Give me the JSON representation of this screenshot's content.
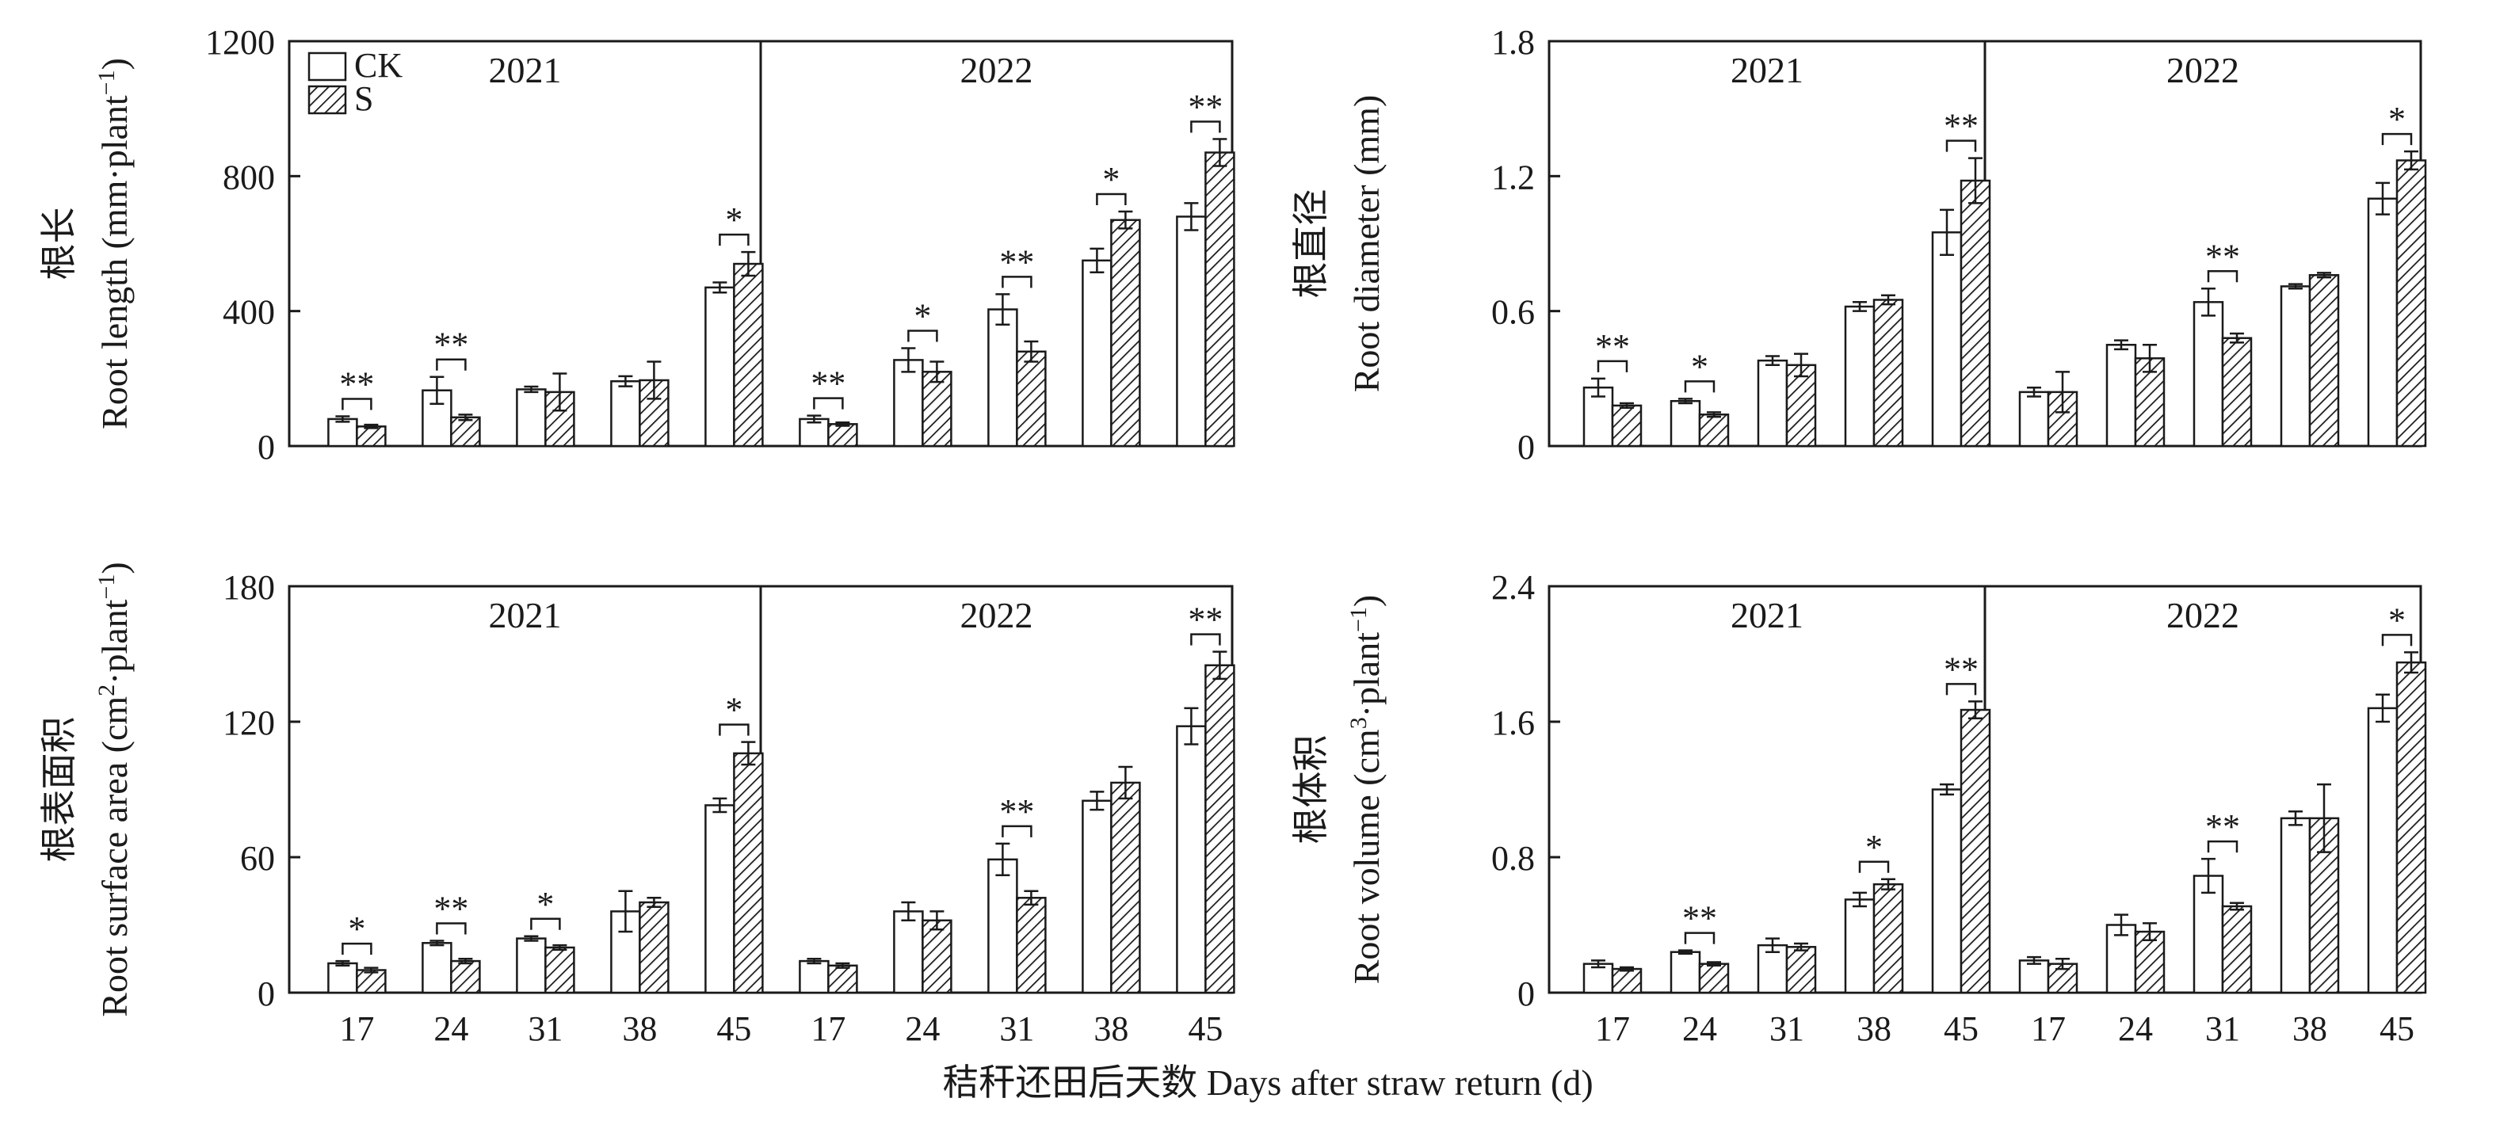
{
  "legend": {
    "ck_label": "CK",
    "s_label": "S"
  },
  "x_axis_title": "秸秆还田后天数 Days after straw return (d)",
  "colors": {
    "axis": "#1a1a1a",
    "ck_fill": "#ffffff",
    "s_hatch": "#1a1a1a"
  },
  "chart_data": [
    {
      "type": "bar",
      "ylabel_cn": "根长",
      "ylabel_en": "Root length (mm·plant",
      "ylabel_sup": "−1",
      "ylabel_close": ")",
      "ylim": [
        0,
        1200
      ],
      "yticks": [
        "0",
        "400",
        "800",
        "1200"
      ],
      "years": [
        "2021",
        "2022"
      ],
      "categories": [
        "17",
        "24",
        "31",
        "38",
        "45"
      ],
      "series": [
        {
          "name": "CK",
          "values": [
            [
              80,
              165,
              168,
              192,
              470
            ],
            [
              80,
              255,
              405,
              550,
              680
            ]
          ],
          "errors": [
            [
              8,
              40,
              8,
              15,
              15
            ],
            [
              10,
              35,
              45,
              35,
              40
            ]
          ]
        },
        {
          "name": "S",
          "values": [
            [
              58,
              85,
              160,
              195,
              540
            ],
            [
              65,
              220,
              280,
              670,
              870
            ]
          ],
          "errors": [
            [
              5,
              8,
              55,
              55,
              35
            ],
            [
              5,
              30,
              30,
              25,
              40
            ]
          ]
        }
      ],
      "significance": [
        [
          "**",
          "**",
          "",
          "",
          "*"
        ],
        [
          "**",
          "*",
          "**",
          "*",
          "**"
        ]
      ]
    },
    {
      "type": "bar",
      "ylabel_cn": "根直径",
      "ylabel_en": "Root diameter (mm)",
      "ylabel_sup": "",
      "ylabel_close": "",
      "ylim": [
        0,
        1.8
      ],
      "yticks": [
        "0",
        "0.6",
        "1.2",
        "1.8"
      ],
      "years": [
        "2021",
        "2022"
      ],
      "categories": [
        "17",
        "24",
        "31",
        "38",
        "45"
      ],
      "series": [
        {
          "name": "CK",
          "values": [
            [
              0.26,
              0.2,
              0.38,
              0.62,
              0.95
            ],
            [
              0.24,
              0.45,
              0.64,
              0.71,
              1.1
            ]
          ],
          "errors": [
            [
              0.04,
              0.01,
              0.02,
              0.02,
              0.1
            ],
            [
              0.02,
              0.02,
              0.06,
              0.01,
              0.07
            ]
          ]
        },
        {
          "name": "S",
          "values": [
            [
              0.18,
              0.14,
              0.36,
              0.65,
              1.18
            ],
            [
              0.24,
              0.39,
              0.48,
              0.76,
              1.27
            ]
          ],
          "errors": [
            [
              0.01,
              0.01,
              0.05,
              0.02,
              0.1
            ],
            [
              0.09,
              0.06,
              0.02,
              0.01,
              0.04
            ]
          ]
        }
      ],
      "significance": [
        [
          "**",
          "*",
          "",
          "",
          "**"
        ],
        [
          "",
          "",
          "**",
          "",
          "*"
        ]
      ]
    },
    {
      "type": "bar",
      "ylabel_cn": "根表面积",
      "ylabel_en": "Root surface area (cm",
      "ylabel_sup": "2",
      "ylabel_mid": "·plant",
      "ylabel_sup2": "−1",
      "ylabel_close": ")",
      "ylim": [
        0,
        180
      ],
      "yticks": [
        "0",
        "60",
        "120",
        "180"
      ],
      "years": [
        "2021",
        "2022"
      ],
      "categories": [
        "17",
        "24",
        "31",
        "38",
        "45"
      ],
      "series": [
        {
          "name": "CK",
          "values": [
            [
              13,
              22,
              24,
              36,
              83
            ],
            [
              14,
              36,
              59,
              85,
              118
            ]
          ],
          "errors": [
            [
              1,
              1,
              1,
              9,
              3
            ],
            [
              1,
              4,
              7,
              4,
              8
            ]
          ]
        },
        {
          "name": "S",
          "values": [
            [
              10,
              14,
              20,
              40,
              106
            ],
            [
              12,
              32,
              42,
              93,
              145
            ]
          ],
          "errors": [
            [
              1,
              1,
              1,
              2,
              5
            ],
            [
              1,
              4,
              3,
              7,
              6
            ]
          ]
        }
      ],
      "significance": [
        [
          "*",
          "**",
          "*",
          "",
          "*"
        ],
        [
          "",
          "",
          "**",
          "",
          "**"
        ]
      ]
    },
    {
      "type": "bar",
      "ylabel_cn": "根体积",
      "ylabel_en": "Root volume (cm",
      "ylabel_sup": "3",
      "ylabel_mid": "·plant",
      "ylabel_sup2": "−1",
      "ylabel_close": ")",
      "ylim": [
        0,
        2.4
      ],
      "yticks": [
        "0",
        "0.8",
        "1.6",
        "2.4"
      ],
      "years": [
        "2021",
        "2022"
      ],
      "categories": [
        "17",
        "24",
        "31",
        "38",
        "45"
      ],
      "series": [
        {
          "name": "CK",
          "values": [
            [
              0.17,
              0.24,
              0.28,
              0.55,
              1.2
            ],
            [
              0.19,
              0.4,
              0.69,
              1.03,
              1.68
            ]
          ],
          "errors": [
            [
              0.02,
              0.01,
              0.04,
              0.04,
              0.03
            ],
            [
              0.02,
              0.06,
              0.1,
              0.04,
              0.08
            ]
          ]
        },
        {
          "name": "S",
          "values": [
            [
              0.14,
              0.17,
              0.27,
              0.64,
              1.67
            ],
            [
              0.17,
              0.36,
              0.51,
              1.03,
              1.95
            ]
          ],
          "errors": [
            [
              0.01,
              0.01,
              0.02,
              0.03,
              0.05
            ],
            [
              0.03,
              0.05,
              0.02,
              0.2,
              0.06
            ]
          ]
        }
      ],
      "significance": [
        [
          "",
          "**",
          "",
          "*",
          "**"
        ],
        [
          "",
          "",
          "**",
          "",
          "*"
        ]
      ]
    }
  ]
}
